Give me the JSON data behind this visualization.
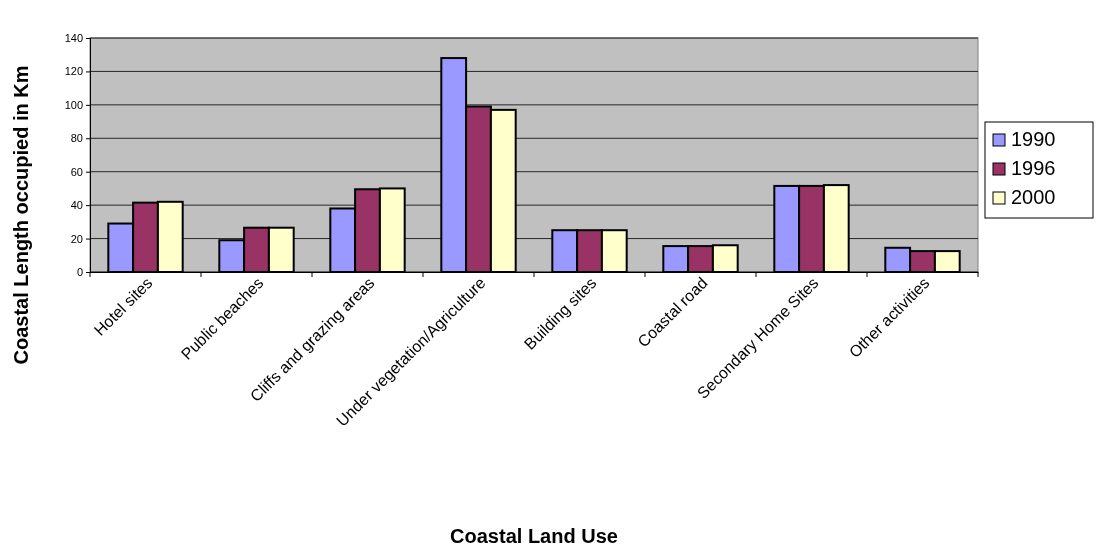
{
  "chart_data": {
    "type": "bar",
    "xlabel": "Coastal Land Use",
    "ylabel": "Coastal Length occupied in Km",
    "categories": [
      "Hotel sites",
      "Public beaches",
      "Cliffs and grazing areas",
      "Under vegetation/Agriculture",
      "Building sites",
      "Coastal road",
      "Secondary Home Sites",
      "Other activities"
    ],
    "series": [
      {
        "name": "1990",
        "color": "#9999ff",
        "values": [
          29,
          19,
          38,
          128,
          25,
          15.5,
          51.5,
          14.5
        ]
      },
      {
        "name": "1996",
        "color": "#993366",
        "values": [
          41.5,
          26.5,
          49.5,
          99,
          25,
          15.5,
          51.5,
          12.5
        ]
      },
      {
        "name": "2000",
        "color": "#ffffcc",
        "values": [
          42,
          26.5,
          50,
          97,
          25,
          16,
          52,
          12.5
        ]
      }
    ],
    "ylim": [
      0,
      140
    ],
    "yticks": [
      0,
      20,
      40,
      60,
      80,
      100,
      120,
      140
    ],
    "grid": "y",
    "legend": "right"
  }
}
